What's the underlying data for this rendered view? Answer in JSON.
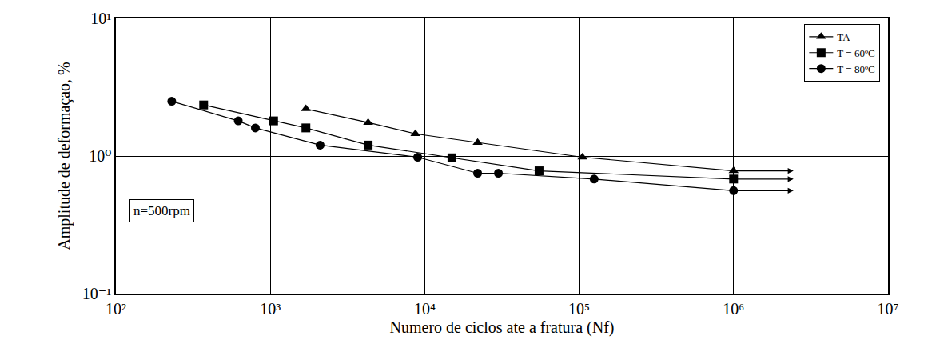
{
  "chart_data": {
    "type": "scatter",
    "log": true,
    "grid": true,
    "legend": "top right",
    "x_label": "Numero de ciclos ate a fratura (Nf)",
    "y_label": "Amplitude de deformaçao, %",
    "annotations": [
      "n=500rpm"
    ],
    "xlim": [
      100,
      10000000
    ],
    "xticks": [
      {
        "value": 100,
        "label": "10²"
      },
      {
        "value": 1000,
        "label": "10³"
      },
      {
        "value": 10000,
        "label": "10⁴"
      },
      {
        "value": 100000,
        "label": "10⁵"
      },
      {
        "value": 1000000,
        "label": "10⁶"
      },
      {
        "value": 10000000,
        "label": "10⁷"
      }
    ],
    "ylim": [
      0.1,
      10
    ],
    "yticks": [
      {
        "value": 0.1,
        "label": "10⁻¹"
      },
      {
        "value": 1,
        "label": "10⁰"
      },
      {
        "value": 10,
        "label": "10¹"
      }
    ],
    "series": [
      {
        "name": "TA",
        "color": "#000000",
        "marker": "triangle-up",
        "line_style": "solid",
        "x": [
          1700,
          4300,
          8700,
          22000,
          105000,
          1000000
        ],
        "values": [
          2.2,
          1.75,
          1.45,
          1.25,
          0.98,
          0.78
        ]
      },
      {
        "name": "T = 60ºC",
        "color": "#000000",
        "marker": "square",
        "line_style": "solid",
        "x": [
          370,
          1050,
          1700,
          4300,
          15000,
          55000,
          1000000
        ],
        "values": [
          2.35,
          1.8,
          1.6,
          1.2,
          0.97,
          0.78,
          0.68
        ]
      },
      {
        "name": "T = 80ºC",
        "color": "#000000",
        "marker": "circle",
        "line_style": "solid",
        "x": [
          230,
          620,
          800,
          2100,
          9000,
          22000,
          30000,
          125000,
          1000000
        ],
        "values": [
          2.5,
          1.8,
          1.6,
          1.2,
          0.98,
          0.75,
          0.75,
          0.68,
          0.56
        ]
      }
    ]
  }
}
